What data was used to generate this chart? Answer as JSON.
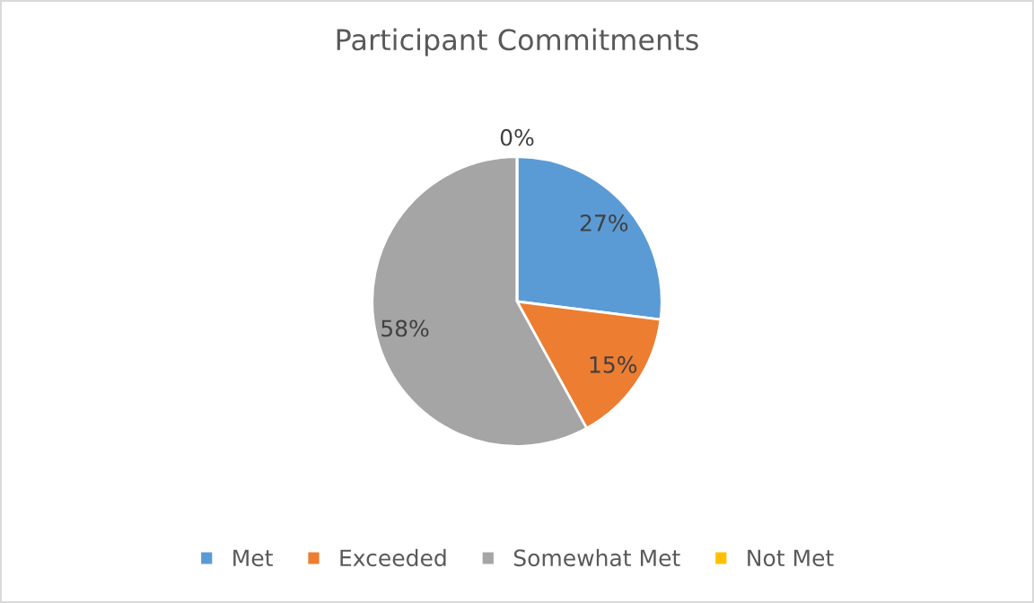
{
  "chart_data": {
    "type": "pie",
    "title": "Participant Commitments",
    "categories": [
      "Met",
      "Exceeded",
      "Somewhat Met",
      "Not Met"
    ],
    "values": [
      27,
      15,
      58,
      0
    ],
    "colors": [
      "#5b9bd5",
      "#ed7d31",
      "#a5a5a5",
      "#ffc000"
    ],
    "value_labels": [
      "27%",
      "15%",
      "58%",
      "0%"
    ],
    "legend": "bottom"
  }
}
